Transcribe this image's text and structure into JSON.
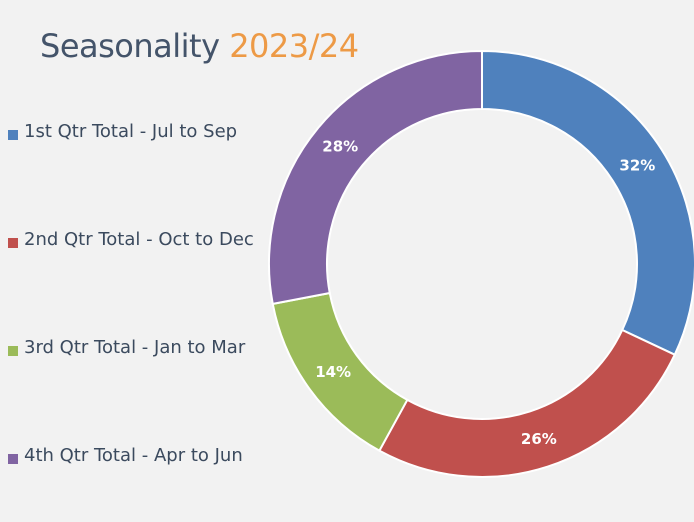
{
  "chart_data": {
    "type": "pie",
    "title": "Seasonality",
    "title_year": "2023/24",
    "categories": [
      "1st Qtr Total - Jul to Sep",
      "2nd Qtr Total - Oct to Dec",
      "3rd Qtr Total - Jan to Mar",
      "4th Qtr Total - Apr to Jun"
    ],
    "values": [
      32,
      26,
      14,
      28
    ],
    "labels": [
      "32%",
      "26%",
      "14%",
      "28%"
    ],
    "colors": [
      "#4f81bd",
      "#c0504d",
      "#9bbb59",
      "#8064a2"
    ],
    "donut": true,
    "legend_position": "left"
  },
  "colors": {
    "background": "#f2f2f2",
    "title": "#44546a",
    "title_year": "#ed9a46"
  }
}
